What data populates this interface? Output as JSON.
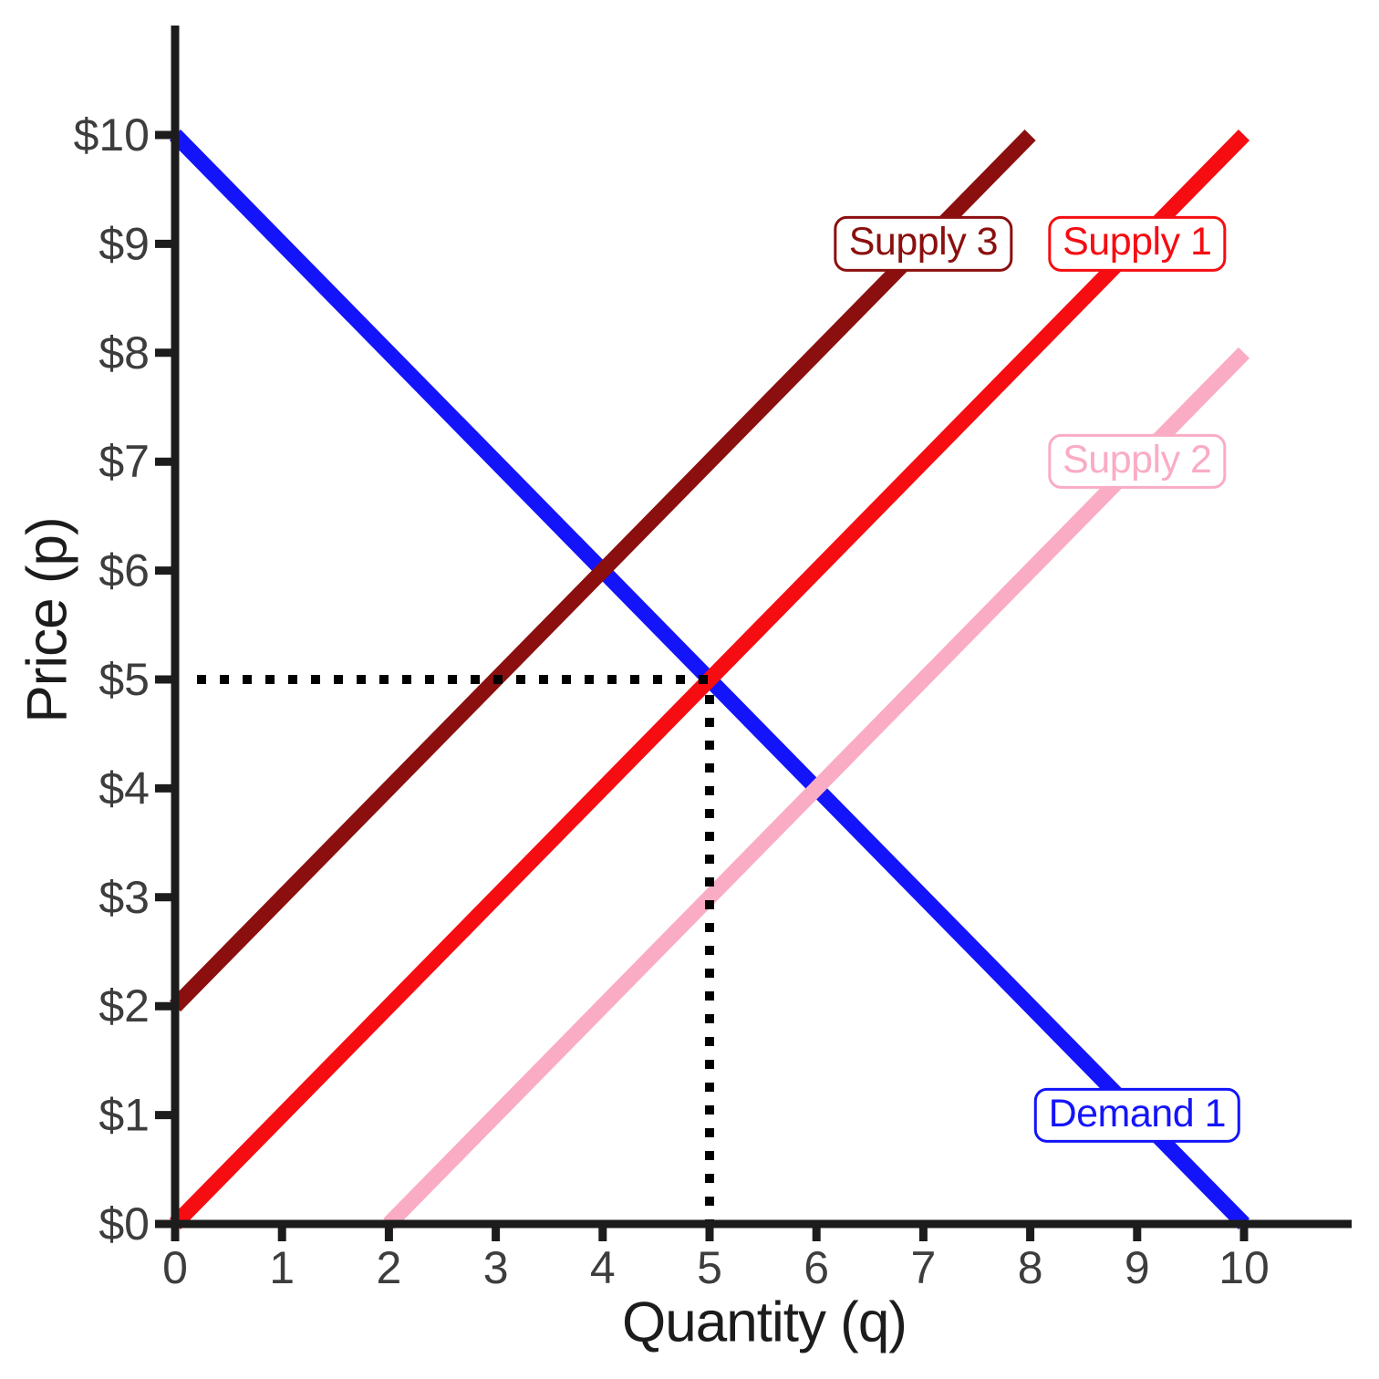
{
  "chart_data": {
    "type": "line",
    "title": "",
    "xlabel": "Quantity (q)",
    "ylabel": "Price (p)",
    "xlim": [
      0,
      11
    ],
    "ylim": [
      0,
      11
    ],
    "grid": false,
    "legend_position": "on-line-labels",
    "x_ticks": {
      "values": [
        0,
        1,
        2,
        3,
        4,
        5,
        6,
        7,
        8,
        9,
        10
      ],
      "labels": [
        "0",
        "1",
        "2",
        "3",
        "4",
        "5",
        "6",
        "7",
        "8",
        "9",
        "10"
      ]
    },
    "y_ticks": {
      "values": [
        0,
        1,
        2,
        3,
        4,
        5,
        6,
        7,
        8,
        9,
        10
      ],
      "labels": [
        "$0",
        "$1",
        "$2",
        "$3",
        "$4",
        "$5",
        "$6",
        "$7",
        "$8",
        "$9",
        "$10"
      ]
    },
    "series": [
      {
        "name": "Demand 1",
        "role": "demand",
        "color": "#1414fa",
        "points": [
          [
            0,
            10
          ],
          [
            10,
            0
          ]
        ],
        "label_anchor": [
          9,
          1
        ]
      },
      {
        "name": "Supply 1",
        "role": "supply",
        "color": "#f50d12",
        "points": [
          [
            0,
            0
          ],
          [
            10,
            10
          ]
        ],
        "label_anchor": [
          9,
          9
        ]
      },
      {
        "name": "Supply 2",
        "role": "supply",
        "color": "#faacc4",
        "points": [
          [
            2,
            0
          ],
          [
            10,
            8
          ]
        ],
        "label_anchor": [
          9,
          7
        ]
      },
      {
        "name": "Supply 3",
        "role": "supply",
        "color": "#8b0f0f",
        "points": [
          [
            0,
            2
          ],
          [
            8,
            10
          ]
        ],
        "label_anchor": [
          7,
          9
        ]
      }
    ],
    "equilibrium": {
      "q": 5,
      "p": 5,
      "marker": "dotted-guides"
    },
    "styles": {
      "axis_color": "#1c1c1c",
      "tick_label_color": "#3d3d3d",
      "dotted_color": "#000000",
      "background": "#ffffff"
    }
  }
}
